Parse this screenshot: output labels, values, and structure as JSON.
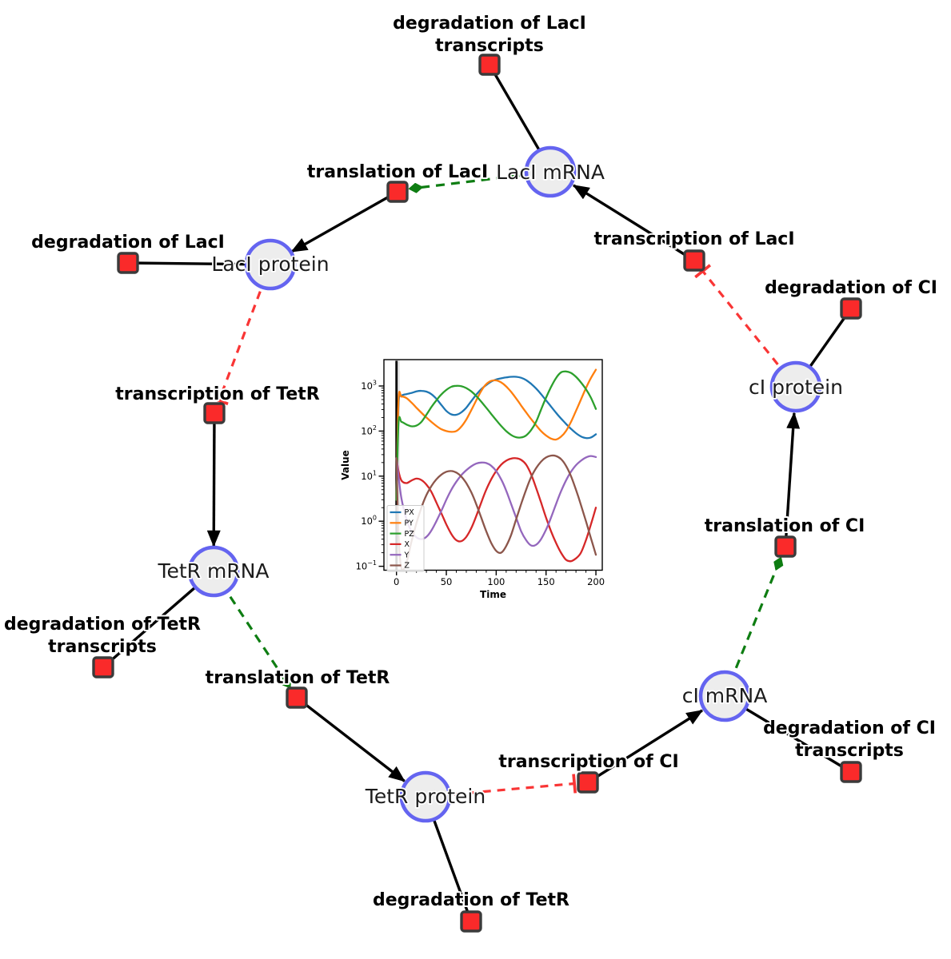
{
  "diagram": {
    "node_style": {
      "circle_fill": "#ededed",
      "circle_stroke": "#6464f0",
      "square_fill": "#fa2a2a",
      "square_stroke": "#3b3b3b"
    },
    "edge_colors": {
      "flow": "#000000",
      "activation": "#0e7d12",
      "inhibition": "#f93535"
    },
    "labels": {
      "laci_mrna": "LacI mRNA",
      "laci_protein": "LacI protein",
      "tetr_mrna": "TetR mRNA",
      "tetr_protein": "TetR protein",
      "ci_mrna": "cI mRNA",
      "ci_protein": "cI protein",
      "deg_laci_tx_1": "degradation of LacI",
      "deg_laci_tx_2": "transcripts",
      "tsl_laci": "translation of LacI",
      "tsc_laci": "transcription of LacI",
      "deg_laci": "degradation of LacI",
      "deg_ci": "degradation of CI",
      "tsc_tetr": "transcription of TetR",
      "tsl_ci": "translation of CI",
      "deg_tetr_tx_1": "degradation of TetR",
      "deg_tetr_tx_2": "transcripts",
      "tsl_tetr": "translation of TetR",
      "tsc_ci": "transcription of CI",
      "deg_ci_tx_1": "degradation of CI",
      "deg_ci_tx_2": "transcripts",
      "deg_tetr": "degradation of TetR"
    }
  },
  "chart_data": {
    "type": "line",
    "title": "",
    "xlabel": "Time",
    "ylabel": "Value",
    "yscale": "log",
    "grid": false,
    "legend_position": "lower left",
    "xlim": [
      -12.6,
      206
    ],
    "ylim": [
      0.083,
      3900
    ],
    "x_ticks": [
      0,
      50,
      100,
      150,
      200
    ],
    "x_tick_labels": [
      "0",
      "50",
      "100",
      "150",
      "200"
    ],
    "y_ticks": [
      1000,
      100,
      10,
      1,
      0.1
    ],
    "y_tick_exponents": [
      "3",
      "2",
      "1",
      "0",
      "−1"
    ],
    "t0_marker": {
      "line_x": 0,
      "line_color": "#000000",
      "band": [
        -1,
        3.2
      ],
      "band_color": "#d8d8d8"
    },
    "x": [
      0,
      2,
      5,
      10,
      15,
      20,
      25,
      30,
      35,
      40,
      45,
      50,
      55,
      60,
      65,
      70,
      75,
      80,
      85,
      90,
      95,
      100,
      105,
      110,
      115,
      120,
      125,
      130,
      135,
      140,
      145,
      150,
      155,
      160,
      165,
      170,
      175,
      180,
      185,
      190,
      195,
      200
    ],
    "series": [
      {
        "name": "PX",
        "color": "#1f77b4",
        "y": [
          3,
          380,
          600,
          660,
          700,
          760,
          780,
          750,
          660,
          520,
          380,
          280,
          235,
          230,
          260,
          330,
          460,
          640,
          850,
          1050,
          1250,
          1400,
          1480,
          1550,
          1600,
          1600,
          1520,
          1350,
          1120,
          880,
          660,
          480,
          350,
          255,
          190,
          145,
          112,
          90,
          76,
          70,
          72,
          85
        ]
      },
      {
        "name": "PY",
        "color": "#ff7f0e",
        "y": [
          3,
          480,
          580,
          540,
          430,
          330,
          255,
          200,
          160,
          130,
          110,
          100,
          96,
          100,
          125,
          180,
          290,
          480,
          780,
          1100,
          1300,
          1330,
          1200,
          980,
          740,
          530,
          370,
          260,
          185,
          135,
          100,
          80,
          68,
          65,
          75,
          100,
          160,
          280,
          500,
          900,
          1500,
          2300
        ]
      },
      {
        "name": "PZ",
        "color": "#2ca02c",
        "y": [
          3,
          150,
          160,
          140,
          128,
          132,
          160,
          230,
          340,
          480,
          650,
          820,
          960,
          1010,
          990,
          900,
          760,
          600,
          450,
          330,
          240,
          175,
          130,
          100,
          82,
          73,
          72,
          80,
          105,
          160,
          300,
          550,
          950,
          1500,
          2000,
          2100,
          1950,
          1600,
          1200,
          850,
          550,
          310
        ]
      },
      {
        "name": "X",
        "color": "#d62728",
        "y": [
          25,
          13,
          8,
          7,
          8,
          8.8,
          8.2,
          6.5,
          4.5,
          2.6,
          1.5,
          0.85,
          0.52,
          0.38,
          0.36,
          0.45,
          0.7,
          1.3,
          2.6,
          5,
          8.5,
          13,
          18,
          22,
          24.5,
          25,
          23,
          18,
          11,
          5.5,
          2.6,
          1.2,
          0.6,
          0.33,
          0.2,
          0.14,
          0.13,
          0.15,
          0.2,
          0.38,
          0.85,
          2
        ]
      },
      {
        "name": "Y",
        "color": "#9467bd",
        "y": [
          25,
          10,
          3.2,
          1.1,
          0.6,
          0.44,
          0.4,
          0.45,
          0.62,
          1,
          1.7,
          3,
          5,
          7.5,
          10.5,
          13.5,
          16.5,
          19,
          20,
          19.5,
          17,
          13,
          8.5,
          4.8,
          2.4,
          1.2,
          0.6,
          0.38,
          0.29,
          0.3,
          0.4,
          0.65,
          1.2,
          2.4,
          4.6,
          8,
          12.5,
          17.5,
          22,
          26,
          28,
          26.5
        ]
      },
      {
        "name": "Z",
        "color": "#8c564b",
        "y": [
          25,
          0.5,
          0.09,
          0.12,
          0.35,
          0.9,
          2,
          3.8,
          6,
          8.5,
          10.8,
          12.5,
          13,
          12,
          9.8,
          7,
          4.4,
          2.4,
          1.2,
          0.6,
          0.33,
          0.22,
          0.2,
          0.28,
          0.5,
          1.1,
          2.4,
          5,
          9.5,
          15,
          21,
          26,
          28.5,
          28,
          24,
          17,
          10,
          5,
          2.3,
          1,
          0.42,
          0.18
        ]
      }
    ]
  }
}
